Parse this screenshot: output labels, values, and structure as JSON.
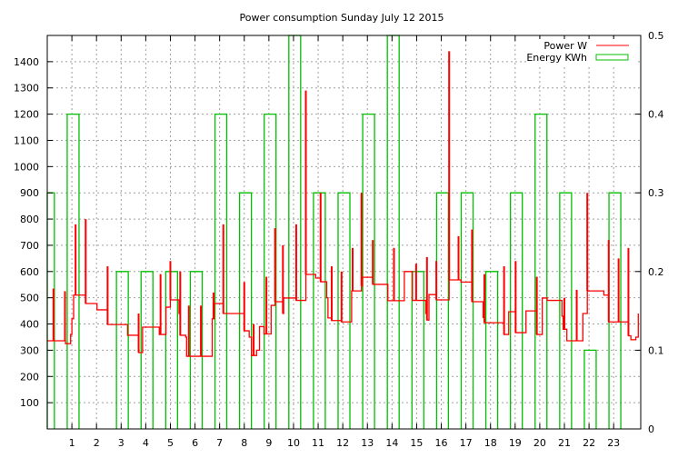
{
  "chart_data": {
    "type": "line",
    "title": "Power consumption Sunday July 12 2015",
    "xlabel": "",
    "ylabel": "",
    "xlim": [
      0,
      24.1
    ],
    "ylim": [
      0,
      1500
    ],
    "y2lim": [
      0,
      0.5
    ],
    "grid": true,
    "legend_position": "top-right",
    "x_ticks": [
      "1",
      "2",
      "3",
      "4",
      "5",
      "6",
      "7",
      "8",
      "9",
      "10",
      "11",
      "12",
      "13",
      "14",
      "15",
      "16",
      "17",
      "18",
      "19",
      "20",
      "21",
      "22",
      "23"
    ],
    "y_ticks": [
      "100",
      "200",
      "300",
      "400",
      "500",
      "600",
      "700",
      "800",
      "900",
      "1000",
      "1100",
      "1200",
      "1300",
      "1400"
    ],
    "y2_ticks": [
      "0",
      "0.1",
      "0.2",
      "0.3",
      "0.4",
      "0.5"
    ],
    "series": [
      {
        "name": "Power W",
        "type": "step",
        "color": "#ff0000",
        "points": [
          [
            0,
            336
          ],
          [
            0.74,
            325
          ],
          [
            0.95,
            360
          ],
          [
            1.0,
            420
          ],
          [
            1.07,
            510
          ],
          [
            1.56,
            478
          ],
          [
            2.02,
            454
          ],
          [
            2.45,
            398
          ],
          [
            3.26,
            357
          ],
          [
            3.71,
            291
          ],
          [
            3.87,
            388
          ],
          [
            4.55,
            360
          ],
          [
            4.82,
            464
          ],
          [
            5.0,
            492
          ],
          [
            5.35,
            440
          ],
          [
            5.4,
            357
          ],
          [
            5.62,
            350
          ],
          [
            5.66,
            277
          ],
          [
            6.7,
            420
          ],
          [
            6.78,
            478
          ],
          [
            7.15,
            440
          ],
          [
            8.0,
            374
          ],
          [
            8.2,
            350
          ],
          [
            8.29,
            280
          ],
          [
            8.5,
            300
          ],
          [
            8.62,
            390
          ],
          [
            8.8,
            362
          ],
          [
            9.09,
            471
          ],
          [
            9.25,
            485
          ],
          [
            9.57,
            440
          ],
          [
            9.6,
            499
          ],
          [
            10.11,
            490
          ],
          [
            10.5,
            589
          ],
          [
            10.9,
            575
          ],
          [
            11.1,
            561
          ],
          [
            11.35,
            500
          ],
          [
            11.4,
            423
          ],
          [
            11.55,
            413
          ],
          [
            11.95,
            408
          ],
          [
            12.36,
            526
          ],
          [
            12.76,
            545
          ],
          [
            12.8,
            578
          ],
          [
            13.22,
            551
          ],
          [
            13.83,
            489
          ],
          [
            14.5,
            600
          ],
          [
            14.83,
            490
          ],
          [
            15.37,
            440
          ],
          [
            15.42,
            415
          ],
          [
            15.5,
            512
          ],
          [
            15.8,
            492
          ],
          [
            16.32,
            568
          ],
          [
            16.8,
            560
          ],
          [
            17.25,
            485
          ],
          [
            17.7,
            425
          ],
          [
            17.75,
            405
          ],
          [
            18.55,
            360
          ],
          [
            18.74,
            447
          ],
          [
            19.02,
            367
          ],
          [
            19.44,
            450
          ],
          [
            19.88,
            360
          ],
          [
            20.1,
            499
          ],
          [
            20.3,
            490
          ],
          [
            20.9,
            430
          ],
          [
            20.95,
            380
          ],
          [
            21.1,
            336
          ],
          [
            21.75,
            440
          ],
          [
            21.93,
            526
          ],
          [
            22.6,
            510
          ],
          [
            22.8,
            408
          ],
          [
            23.6,
            355
          ],
          [
            23.7,
            340
          ],
          [
            23.9,
            350
          ],
          [
            24.0,
            440
          ]
        ],
        "spikes": [
          [
            0.25,
            535
          ],
          [
            0.72,
            525
          ],
          [
            1.15,
            780
          ],
          [
            1.56,
            800
          ],
          [
            2.45,
            620
          ],
          [
            3.71,
            440
          ],
          [
            4.6,
            590
          ],
          [
            5.0,
            640
          ],
          [
            5.4,
            600
          ],
          [
            5.75,
            470
          ],
          [
            6.24,
            470
          ],
          [
            6.75,
            520
          ],
          [
            7.15,
            780
          ],
          [
            8.0,
            560
          ],
          [
            8.38,
            400
          ],
          [
            8.9,
            580
          ],
          [
            9.25,
            765
          ],
          [
            9.57,
            700
          ],
          [
            10.11,
            780
          ],
          [
            10.5,
            1290
          ],
          [
            11.1,
            900
          ],
          [
            11.55,
            620
          ],
          [
            11.95,
            600
          ],
          [
            12.4,
            690
          ],
          [
            12.76,
            900
          ],
          [
            13.22,
            720
          ],
          [
            14.08,
            690
          ],
          [
            14.98,
            630
          ],
          [
            15.42,
            655
          ],
          [
            15.8,
            640
          ],
          [
            16.32,
            1440
          ],
          [
            16.7,
            735
          ],
          [
            17.25,
            760
          ],
          [
            17.75,
            590
          ],
          [
            18.55,
            620
          ],
          [
            19.02,
            640
          ],
          [
            19.88,
            580
          ],
          [
            21.0,
            500
          ],
          [
            21.5,
            530
          ],
          [
            21.93,
            900
          ],
          [
            22.8,
            720
          ],
          [
            23.2,
            650
          ],
          [
            23.6,
            690
          ]
        ]
      },
      {
        "name": "Energy KWh",
        "type": "boxes",
        "axis": "y2",
        "color": "#00c000",
        "x": [
          0,
          1,
          2,
          3,
          4,
          5,
          6,
          7,
          8,
          9,
          10,
          11,
          12,
          13,
          14,
          15,
          16,
          17,
          18,
          19,
          20,
          21,
          22,
          23
        ],
        "values": [
          0.3,
          0.4,
          null,
          0.2,
          0.2,
          0.2,
          0.2,
          0.4,
          0.3,
          0.4,
          0.5,
          0.3,
          0.3,
          0.4,
          0.5,
          0.2,
          0.3,
          0.3,
          0.2,
          0.3,
          0.4,
          0.3,
          0.1,
          0.3
        ]
      }
    ]
  }
}
